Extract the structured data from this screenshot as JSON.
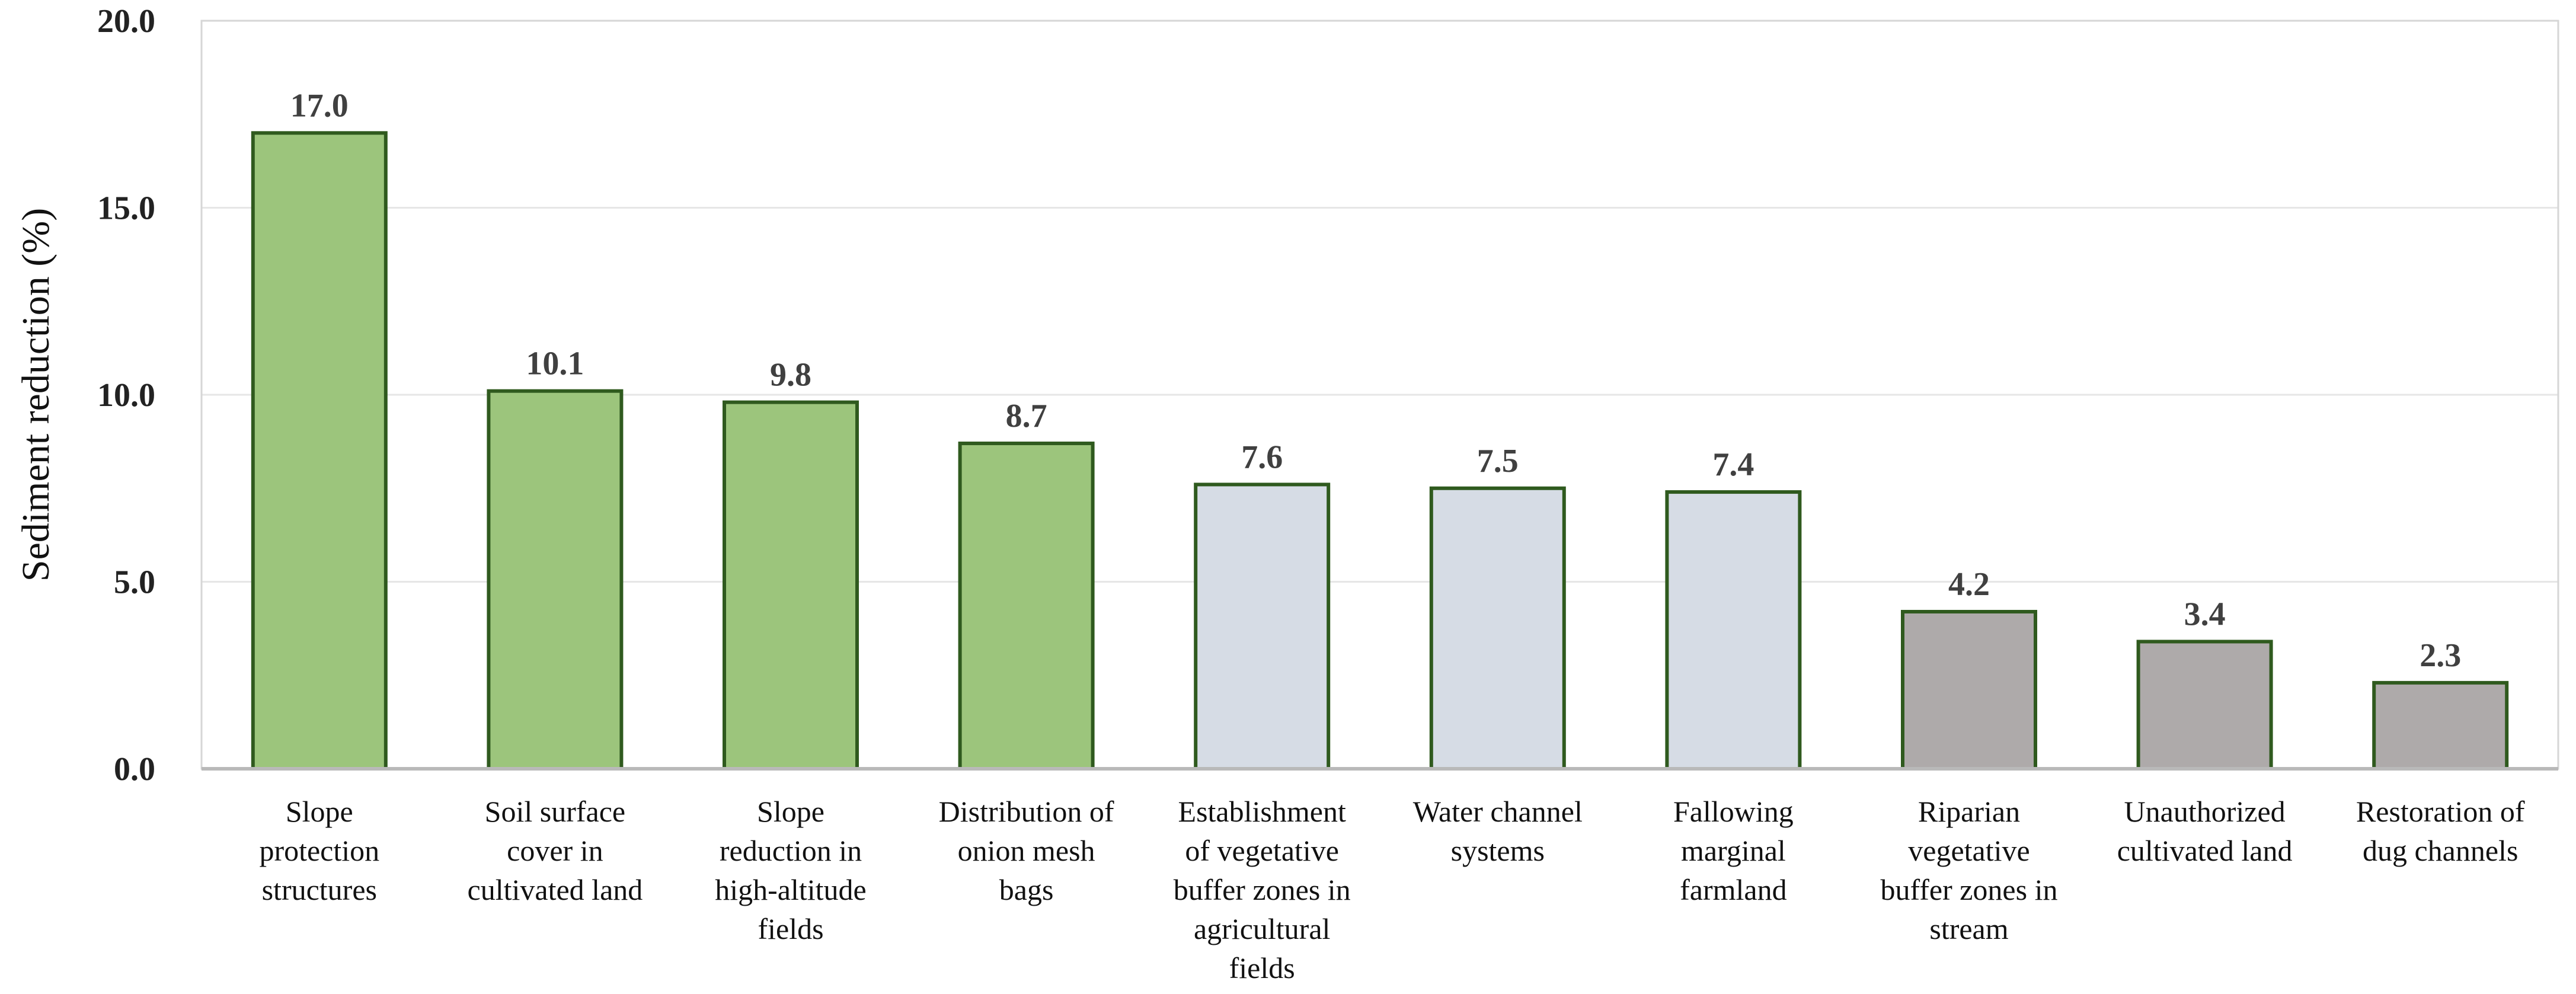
{
  "chart_data": {
    "type": "bar",
    "title": "",
    "xlabel": "",
    "ylabel": "Sediment reduction (%)",
    "ylim": [
      0,
      20
    ],
    "yticks": [
      "0.0",
      "5.0",
      "10.0",
      "15.0",
      "20.0"
    ],
    "grid": true,
    "categories": [
      [
        "Slope",
        "protection",
        "structures"
      ],
      [
        "Soil surface",
        "cover in",
        "cultivated land"
      ],
      [
        "Slope",
        "reduction in",
        "high-altitude",
        "fields"
      ],
      [
        "Distribution of",
        "onion mesh",
        "bags"
      ],
      [
        "Establishment",
        "of vegetative",
        "buffer zones in",
        "agricultural",
        "fields"
      ],
      [
        "Water channel",
        "systems"
      ],
      [
        "Fallowing",
        "marginal",
        "farmland"
      ],
      [
        "Riparian",
        "vegetative",
        "buffer zones in",
        "stream"
      ],
      [
        "Unauthorized",
        "cultivated land"
      ],
      [
        "Restoration of",
        "dug channels"
      ]
    ],
    "values": [
      17.0,
      10.1,
      9.8,
      8.7,
      7.6,
      7.5,
      7.4,
      4.2,
      3.4,
      2.3
    ],
    "value_labels": [
      "17.0",
      "10.1",
      "9.8",
      "8.7",
      "7.6",
      "7.5",
      "7.4",
      "4.2",
      "3.4",
      "2.3"
    ],
    "colors": [
      "#9cc57c",
      "#9cc57c",
      "#9cc57c",
      "#9cc57c",
      "#d6dce5",
      "#d6dce5",
      "#d6dce5",
      "#aeaaaa",
      "#aeaaaa",
      "#aeaaaa"
    ],
    "bar_edge_color": "#2f5a1e"
  }
}
